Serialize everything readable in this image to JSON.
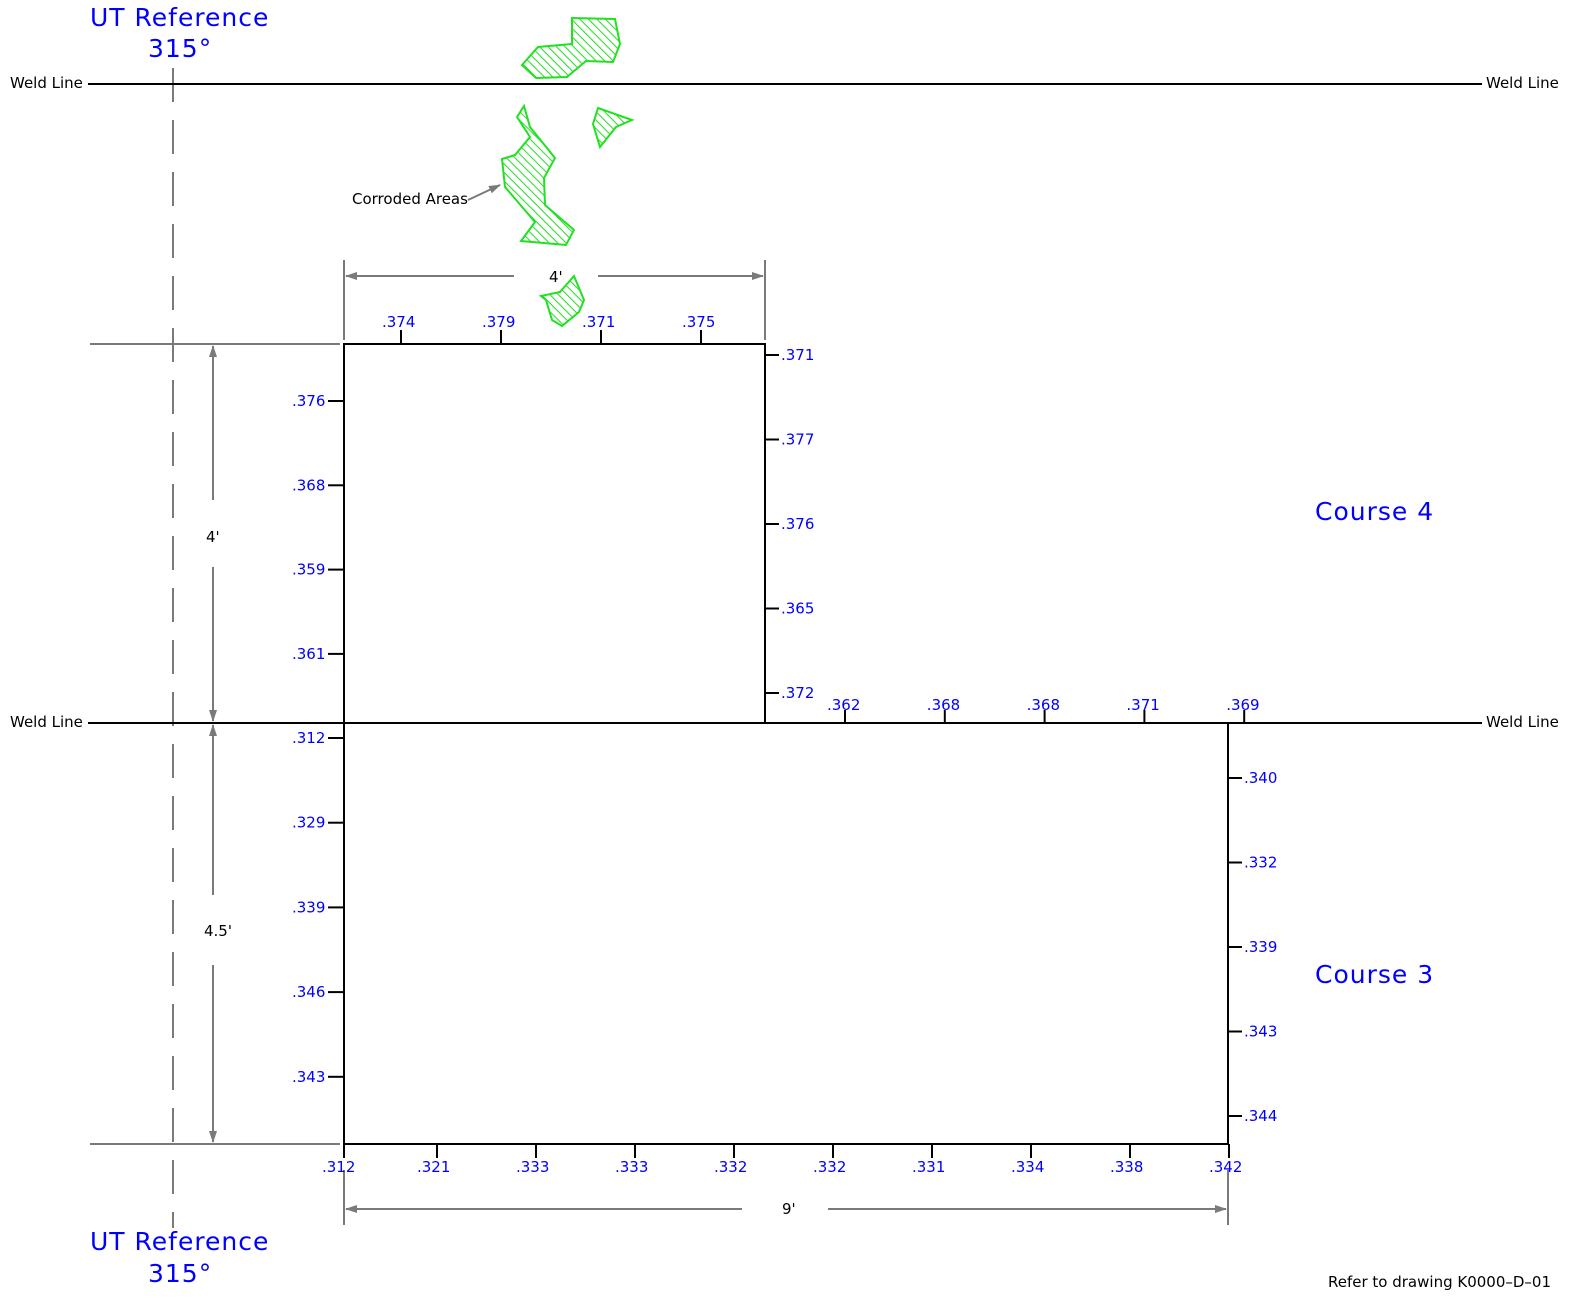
{
  "ut_reference": {
    "label": "UT  Reference",
    "angle": "315°"
  },
  "weld_line_label": "Weld  Line",
  "corroded_areas_label": "Corroded  Areas",
  "courses": {
    "upper": "Course  4",
    "lower": "Course  3"
  },
  "dimensions": {
    "upper_width": "4'",
    "upper_height": "4'",
    "lower_height": "4.5'",
    "lower_width": "9'"
  },
  "readings": {
    "upper_top": [
      ".374",
      ".379",
      ".371",
      ".375"
    ],
    "upper_left": [
      ".376",
      ".368",
      ".359",
      ".361"
    ],
    "upper_right": [
      ".371",
      ".377",
      ".376",
      ".365",
      ".372"
    ],
    "weld_row": [
      ".362",
      ".368",
      ".368",
      ".371",
      ".369"
    ],
    "lower_left": [
      ".312",
      ".329",
      ".339",
      ".346",
      ".343"
    ],
    "lower_right": [
      ".340",
      ".332",
      ".339",
      ".343",
      ".344"
    ],
    "lower_bottom": [
      ".312",
      ".321",
      ".333",
      ".333",
      ".332",
      ".332",
      ".331",
      ".334",
      ".338",
      ".342"
    ]
  },
  "colors": {
    "readings": "#0000ff",
    "corrosion": "#22e022",
    "dimension": "#7a7a7a"
  },
  "footer_note": "Refer  to  drawing  K0000–D–01"
}
